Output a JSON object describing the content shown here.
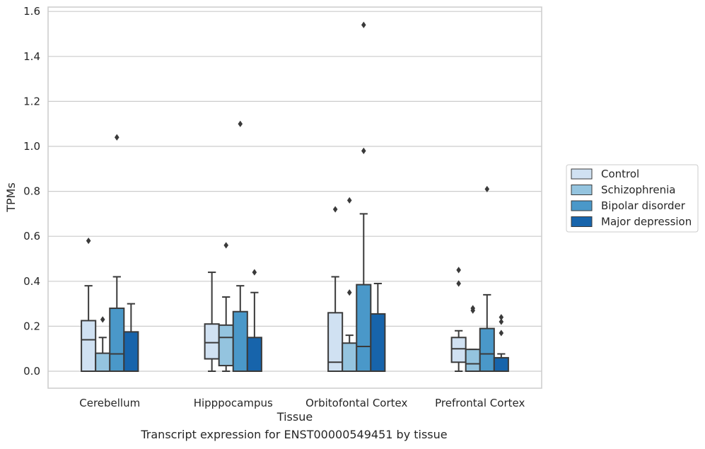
{
  "caption": "Transcript expression for ENST00000549451 by tissue",
  "chart_data": {
    "type": "box",
    "xlabel": "Tissue",
    "ylabel": "TPMs",
    "ylim": [
      -0.075,
      1.62
    ],
    "yticks": [
      0.0,
      0.2,
      0.4,
      0.6,
      0.8,
      1.0,
      1.2,
      1.4,
      1.6
    ],
    "ytick_labels": [
      "0.0",
      "0.2",
      "0.4",
      "0.6",
      "0.8",
      "1.0",
      "1.2",
      "1.4",
      "1.6"
    ],
    "grid": true,
    "legend_position": "right",
    "categories": [
      "Cerebellum",
      "Hipppocampus",
      "Orbitofontal Cortex",
      "Prefrontal Cortex"
    ],
    "series": [
      {
        "name": "Control",
        "color": "#d0e1f2",
        "boxes": [
          {
            "whisker_low": 0.0,
            "q1": 0.0,
            "median": 0.14,
            "q3": 0.225,
            "whisker_high": 0.38,
            "outliers": [
              0.58
            ]
          },
          {
            "whisker_low": 0.0,
            "q1": 0.055,
            "median": 0.127,
            "q3": 0.21,
            "whisker_high": 0.44,
            "outliers": []
          },
          {
            "whisker_low": 0.0,
            "q1": 0.0,
            "median": 0.04,
            "q3": 0.26,
            "whisker_high": 0.42,
            "outliers": [
              0.72
            ]
          },
          {
            "whisker_low": 0.0,
            "q1": 0.04,
            "median": 0.1,
            "q3": 0.15,
            "whisker_high": 0.18,
            "outliers": [
              0.45,
              0.39
            ]
          }
        ]
      },
      {
        "name": "Schizophrenia",
        "color": "#94c4df",
        "boxes": [
          {
            "whisker_low": 0.0,
            "q1": 0.0,
            "median": 0.0,
            "q3": 0.08,
            "whisker_high": 0.15,
            "outliers": [
              0.23
            ]
          },
          {
            "whisker_low": 0.0,
            "q1": 0.025,
            "median": 0.15,
            "q3": 0.205,
            "whisker_high": 0.33,
            "outliers": [
              0.56
            ]
          },
          {
            "whisker_low": 0.0,
            "q1": 0.0,
            "median": 0.0,
            "q3": 0.125,
            "whisker_high": 0.16,
            "outliers": [
              0.35,
              0.76
            ]
          },
          {
            "whisker_low": 0.0,
            "q1": 0.0,
            "median": 0.033,
            "q3": 0.097,
            "whisker_high": 0.097,
            "outliers": [
              0.28,
              0.27
            ]
          }
        ]
      },
      {
        "name": "Bipolar disorder",
        "color": "#4a98c9",
        "boxes": [
          {
            "whisker_low": 0.0,
            "q1": 0.0,
            "median": 0.077,
            "q3": 0.28,
            "whisker_high": 0.42,
            "outliers": [
              1.04
            ]
          },
          {
            "whisker_low": 0.0,
            "q1": 0.0,
            "median": 0.0,
            "q3": 0.265,
            "whisker_high": 0.38,
            "outliers": [
              1.1
            ]
          },
          {
            "whisker_low": 0.0,
            "q1": 0.0,
            "median": 0.11,
            "q3": 0.385,
            "whisker_high": 0.7,
            "outliers": [
              1.54,
              0.98
            ]
          },
          {
            "whisker_low": 0.0,
            "q1": 0.0,
            "median": 0.077,
            "q3": 0.19,
            "whisker_high": 0.34,
            "outliers": [
              0.81
            ]
          }
        ]
      },
      {
        "name": "Major depression",
        "color": "#1764ab",
        "boxes": [
          {
            "whisker_low": 0.0,
            "q1": 0.0,
            "median": 0.0,
            "q3": 0.175,
            "whisker_high": 0.3,
            "outliers": []
          },
          {
            "whisker_low": 0.0,
            "q1": 0.0,
            "median": 0.0,
            "q3": 0.15,
            "whisker_high": 0.35,
            "outliers": [
              0.44
            ]
          },
          {
            "whisker_low": 0.0,
            "q1": 0.0,
            "median": 0.0,
            "q3": 0.255,
            "whisker_high": 0.39,
            "outliers": []
          },
          {
            "whisker_low": 0.0,
            "q1": 0.0,
            "median": 0.0,
            "q3": 0.06,
            "whisker_high": 0.077,
            "outliers": [
              0.24,
              0.22,
              0.17
            ]
          }
        ]
      }
    ]
  }
}
